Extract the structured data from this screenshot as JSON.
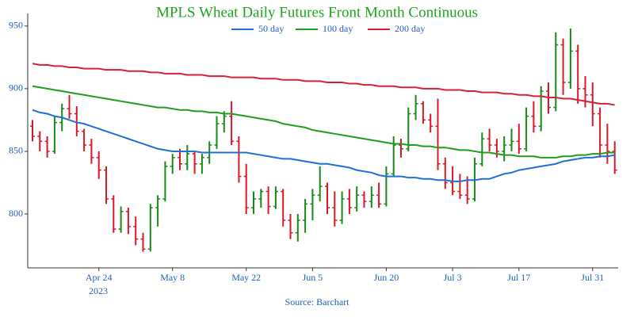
{
  "chart_data": {
    "type": "ohlc",
    "title": "MPLS Wheat Daily Futures Front Month Continuous",
    "source": "Source: Barchart",
    "year_label": "2023",
    "title_color": "#1ea51e",
    "text_color": "#1f5fbf",
    "up_color": "#178a17",
    "down_color": "#d8192a",
    "categories": [
      "2023-04-11",
      "2023-04-12",
      "2023-04-13",
      "2023-04-14",
      "2023-04-17",
      "2023-04-18",
      "2023-04-19",
      "2023-04-20",
      "2023-04-21",
      "2023-04-24",
      "2023-04-25",
      "2023-04-26",
      "2023-04-27",
      "2023-04-28",
      "2023-05-01",
      "2023-05-02",
      "2023-05-03",
      "2023-05-04",
      "2023-05-05",
      "2023-05-08",
      "2023-05-09",
      "2023-05-10",
      "2023-05-11",
      "2023-05-12",
      "2023-05-15",
      "2023-05-16",
      "2023-05-17",
      "2023-05-18",
      "2023-05-19",
      "2023-05-22",
      "2023-05-23",
      "2023-05-24",
      "2023-05-25",
      "2023-05-26",
      "2023-05-30",
      "2023-05-31",
      "2023-06-01",
      "2023-06-02",
      "2023-06-05",
      "2023-06-06",
      "2023-06-07",
      "2023-06-08",
      "2023-06-09",
      "2023-06-12",
      "2023-06-13",
      "2023-06-14",
      "2023-06-15",
      "2023-06-16",
      "2023-06-20",
      "2023-06-21",
      "2023-06-22",
      "2023-06-23",
      "2023-06-26",
      "2023-06-27",
      "2023-06-28",
      "2023-06-29",
      "2023-06-30",
      "2023-07-03",
      "2023-07-05",
      "2023-07-06",
      "2023-07-07",
      "2023-07-10",
      "2023-07-11",
      "2023-07-12",
      "2023-07-13",
      "2023-07-14",
      "2023-07-17",
      "2023-07-18",
      "2023-07-19",
      "2023-07-20",
      "2023-07-21",
      "2023-07-24",
      "2023-07-25",
      "2023-07-26",
      "2023-07-27",
      "2023-07-28",
      "2023-07-31",
      "2023-08-01",
      "2023-08-02",
      "2023-08-03"
    ],
    "ohlc": [
      [
        870,
        875,
        858,
        862
      ],
      [
        862,
        866,
        850,
        858
      ],
      [
        858,
        862,
        845,
        850
      ],
      [
        850,
        878,
        848,
        873
      ],
      [
        873,
        888,
        866,
        884
      ],
      [
        884,
        895,
        876,
        880
      ],
      [
        880,
        886,
        862,
        866
      ],
      [
        866,
        868,
        850,
        855
      ],
      [
        855,
        860,
        840,
        845
      ],
      [
        845,
        850,
        828,
        835
      ],
      [
        835,
        838,
        808,
        812
      ],
      [
        812,
        815,
        785,
        788
      ],
      [
        788,
        806,
        785,
        802
      ],
      [
        802,
        805,
        784,
        790
      ],
      [
        790,
        798,
        775,
        780
      ],
      [
        780,
        785,
        770,
        772
      ],
      [
        772,
        808,
        770,
        805
      ],
      [
        805,
        815,
        790,
        812
      ],
      [
        812,
        842,
        810,
        838
      ],
      [
        838,
        848,
        832,
        845
      ],
      [
        845,
        852,
        835,
        840
      ],
      [
        840,
        855,
        835,
        848
      ],
      [
        848,
        850,
        832,
        840
      ],
      [
        840,
        848,
        832,
        845
      ],
      [
        845,
        858,
        840,
        855
      ],
      [
        855,
        878,
        852,
        872
      ],
      [
        872,
        882,
        865,
        878
      ],
      [
        878,
        890,
        855,
        858
      ],
      [
        858,
        862,
        825,
        830
      ],
      [
        830,
        840,
        800,
        805
      ],
      [
        805,
        818,
        800,
        812
      ],
      [
        812,
        820,
        805,
        818
      ],
      [
        818,
        822,
        800,
        806
      ],
      [
        806,
        822,
        804,
        818
      ],
      [
        818,
        820,
        790,
        795
      ],
      [
        795,
        800,
        780,
        785
      ],
      [
        785,
        800,
        778,
        795
      ],
      [
        795,
        812,
        785,
        808
      ],
      [
        808,
        820,
        795,
        815
      ],
      [
        815,
        838,
        810,
        822
      ],
      [
        822,
        825,
        800,
        805
      ],
      [
        805,
        818,
        790,
        795
      ],
      [
        795,
        818,
        792,
        812
      ],
      [
        812,
        820,
        800,
        805
      ],
      [
        805,
        822,
        802,
        815
      ],
      [
        815,
        818,
        805,
        810
      ],
      [
        810,
        822,
        805,
        815
      ],
      [
        815,
        825,
        805,
        808
      ],
      [
        808,
        838,
        806,
        832
      ],
      [
        832,
        862,
        830,
        855
      ],
      [
        855,
        860,
        845,
        852
      ],
      [
        852,
        885,
        850,
        880
      ],
      [
        880,
        895,
        875,
        888
      ],
      [
        888,
        890,
        872,
        875
      ],
      [
        875,
        880,
        865,
        870
      ],
      [
        870,
        892,
        835,
        840
      ],
      [
        840,
        845,
        820,
        825
      ],
      [
        825,
        838,
        815,
        818
      ],
      [
        818,
        832,
        812,
        815
      ],
      [
        815,
        830,
        808,
        812
      ],
      [
        812,
        845,
        810,
        840
      ],
      [
        840,
        865,
        838,
        860
      ],
      [
        860,
        868,
        850,
        855
      ],
      [
        855,
        860,
        845,
        850
      ],
      [
        850,
        862,
        842,
        855
      ],
      [
        855,
        868,
        850,
        858
      ],
      [
        858,
        872,
        848,
        852
      ],
      [
        852,
        885,
        850,
        878
      ],
      [
        878,
        890,
        865,
        870
      ],
      [
        870,
        902,
        866,
        898
      ],
      [
        898,
        905,
        880,
        885
      ],
      [
        885,
        945,
        882,
        935
      ],
      [
        935,
        940,
        895,
        905
      ],
      [
        905,
        948,
        900,
        930
      ],
      [
        930,
        935,
        888,
        900
      ],
      [
        900,
        910,
        885,
        895
      ],
      [
        895,
        905,
        870,
        880
      ],
      [
        880,
        885,
        845,
        855
      ],
      [
        855,
        872,
        840,
        850
      ],
      [
        850,
        858,
        832,
        835
      ]
    ],
    "series": [
      {
        "name": "50 day",
        "color": "#1f6fd6",
        "values": [
          883,
          881,
          880,
          878,
          877,
          875,
          873,
          872,
          870,
          868,
          866,
          864,
          862,
          860,
          858,
          856,
          854,
          852,
          851,
          850,
          850,
          850,
          850,
          849,
          849,
          849,
          849,
          849,
          849,
          849,
          848,
          847,
          846,
          845,
          844,
          844,
          843,
          842,
          841,
          840,
          840,
          839,
          838,
          837,
          835,
          834,
          833,
          831,
          830,
          830,
          830,
          829,
          829,
          828,
          828,
          827,
          827,
          826,
          826,
          827,
          827,
          828,
          828,
          830,
          832,
          833,
          835,
          836,
          837,
          838,
          839,
          840,
          842,
          843,
          844,
          845,
          845,
          846,
          846,
          847
        ]
      },
      {
        "name": "100 day",
        "color": "#1e9e1e",
        "values": [
          902,
          901,
          900,
          899,
          898,
          897,
          896,
          895,
          894,
          893,
          892,
          891,
          890,
          889,
          888,
          887,
          886,
          885,
          885,
          884,
          883,
          883,
          882,
          882,
          881,
          881,
          880,
          880,
          879,
          878,
          877,
          876,
          875,
          874,
          872,
          871,
          870,
          869,
          867,
          866,
          865,
          864,
          863,
          862,
          861,
          860,
          859,
          858,
          857,
          856,
          856,
          855,
          855,
          854,
          854,
          853,
          853,
          852,
          851,
          851,
          850,
          849,
          849,
          848,
          847,
          847,
          846,
          846,
          846,
          845,
          845,
          845,
          846,
          846,
          847,
          847,
          848,
          848,
          849,
          849
        ]
      },
      {
        "name": "200 day",
        "color": "#d62036",
        "values": [
          920,
          919,
          919,
          918,
          918,
          917,
          917,
          916,
          916,
          916,
          915,
          915,
          915,
          914,
          914,
          914,
          913,
          913,
          912,
          912,
          912,
          911,
          911,
          911,
          910,
          910,
          910,
          909,
          909,
          909,
          909,
          908,
          908,
          908,
          907,
          907,
          907,
          906,
          906,
          906,
          905,
          905,
          905,
          904,
          904,
          903,
          903,
          902,
          902,
          902,
          901,
          901,
          901,
          900,
          900,
          900,
          899,
          899,
          899,
          898,
          898,
          897,
          897,
          897,
          896,
          896,
          895,
          895,
          894,
          894,
          893,
          893,
          892,
          892,
          891,
          890,
          889,
          888,
          888,
          887
        ]
      }
    ],
    "ylim": [
      757,
      960
    ],
    "yticks": [
      800,
      850,
      900,
      950
    ],
    "xticks": [
      {
        "value": "2023-04-24",
        "label": "Apr 24"
      },
      {
        "value": "2023-05-08",
        "label": "May 8"
      },
      {
        "value": "2023-05-22",
        "label": "May 22"
      },
      {
        "value": "2023-06-05",
        "label": "Jun 5"
      },
      {
        "value": "2023-06-20",
        "label": "Jun 20"
      },
      {
        "value": "2023-07-03",
        "label": "Jul 3"
      },
      {
        "value": "2023-07-17",
        "label": "Jul 17"
      },
      {
        "value": "2023-07-31",
        "label": "Jul 31"
      }
    ]
  }
}
